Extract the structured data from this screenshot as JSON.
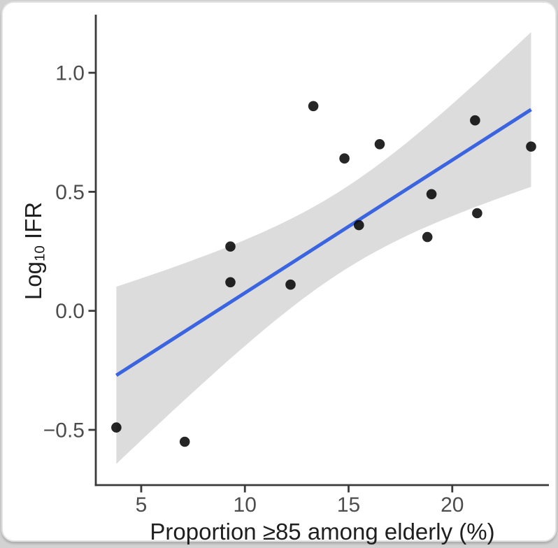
{
  "page": {
    "background": "#d2d2d2"
  },
  "card": {
    "background": "#ffffff",
    "border_color": "#e3e3e3"
  },
  "chart_data": {
    "type": "scatter",
    "title": "",
    "xlabel": "Proportion ≥85 among elderly (%)",
    "ylabel_prefix": "Log",
    "ylabel_subscript": "10",
    "ylabel_suffix": " IFR",
    "xlim": [
      2.81,
      24.66
    ],
    "ylim": [
      -0.732,
      1.244
    ],
    "grid": "off",
    "legend": "none",
    "x_ticks": [
      {
        "value": 5,
        "label": "5"
      },
      {
        "value": 10,
        "label": "10"
      },
      {
        "value": 15,
        "label": "15"
      },
      {
        "value": 20,
        "label": "20"
      }
    ],
    "y_ticks": [
      {
        "value": 1.0,
        "label": "1.0"
      },
      {
        "value": 0.5,
        "label": "0.5"
      },
      {
        "value": 0.0,
        "label": "0.0"
      },
      {
        "value": -0.5,
        "label": "−0.5"
      }
    ],
    "points": [
      {
        "x": 3.8,
        "y": -0.49
      },
      {
        "x": 7.1,
        "y": -0.55
      },
      {
        "x": 9.3,
        "y": 0.27
      },
      {
        "x": 9.3,
        "y": 0.12
      },
      {
        "x": 12.2,
        "y": 0.11
      },
      {
        "x": 13.3,
        "y": 0.86
      },
      {
        "x": 14.8,
        "y": 0.64
      },
      {
        "x": 15.5,
        "y": 0.36
      },
      {
        "x": 16.5,
        "y": 0.7
      },
      {
        "x": 18.8,
        "y": 0.31
      },
      {
        "x": 19.0,
        "y": 0.49
      },
      {
        "x": 21.1,
        "y": 0.8
      },
      {
        "x": 21.2,
        "y": 0.41
      },
      {
        "x": 23.8,
        "y": 0.69
      }
    ],
    "smoother": {
      "kind": "linear-regression",
      "ci_level": 0.95,
      "line_color": "#3b64e0",
      "band_color": "#dcdcdc"
    },
    "point_color": "#000000",
    "point_opacity": 0.85,
    "axis_color": "#3a3a3a",
    "tick_label_color": "#4d4d4d",
    "axis_title_color": "#1f1f1f"
  }
}
